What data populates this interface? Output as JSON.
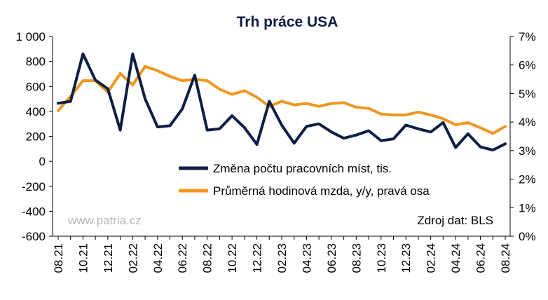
{
  "chart_data": {
    "type": "line",
    "title": "Trh práce USA",
    "x": [
      "08.21",
      "09.21",
      "10.21",
      "11.21",
      "12.21",
      "01.22",
      "02.22",
      "03.22",
      "04.22",
      "05.22",
      "06.22",
      "07.22",
      "08.22",
      "09.22",
      "10.22",
      "11.22",
      "12.22",
      "01.23",
      "02.23",
      "03.23",
      "04.23",
      "05.23",
      "06.23",
      "07.23",
      "08.23",
      "09.23",
      "10.23",
      "11.23",
      "12.23",
      "01.24",
      "02.24",
      "03.24",
      "04.24",
      "05.24",
      "06.24",
      "07.24",
      "08.24"
    ],
    "x_tick_labels": [
      "08.21",
      "10.21",
      "12.21",
      "02.22",
      "04.22",
      "06.22",
      "08.22",
      "10.22",
      "12.22",
      "02.23",
      "04.23",
      "06.23",
      "08.23",
      "10.23",
      "12.23",
      "02.24",
      "04.24",
      "06.24",
      "08.24"
    ],
    "y_left": {
      "ylim": [
        -600,
        1000
      ],
      "ticks": [
        "1 000",
        "800",
        "600",
        "400",
        "200",
        "0",
        "-200",
        "-400",
        "-600"
      ],
      "tick_values": [
        1000,
        800,
        600,
        400,
        200,
        0,
        -200,
        -400,
        -600
      ]
    },
    "y_right": {
      "ylim": [
        0,
        7
      ],
      "ticks": [
        "7%",
        "6%",
        "5%",
        "4%",
        "3%",
        "2%",
        "1%",
        "0%"
      ],
      "tick_values": [
        7,
        6,
        5,
        4,
        3,
        2,
        1,
        0
      ]
    },
    "series": [
      {
        "name": "Změna počtu pracovních míst, tis.",
        "axis": "left",
        "color": "#0d1f45",
        "values": [
          465,
          480,
          860,
          650,
          580,
          250,
          860,
          500,
          275,
          285,
          420,
          690,
          250,
          260,
          365,
          270,
          135,
          480,
          290,
          145,
          280,
          300,
          235,
          185,
          210,
          245,
          165,
          180,
          290,
          260,
          235,
          310,
          110,
          220,
          115,
          90,
          140
        ]
      },
      {
        "name": "Průměrná hodinová mzda, y/y, pravá osa",
        "axis": "right",
        "color": "#f0961e",
        "values": [
          4.4,
          4.9,
          5.45,
          5.45,
          5.05,
          5.7,
          5.3,
          5.95,
          5.8,
          5.6,
          5.45,
          5.5,
          5.45,
          5.15,
          4.97,
          5.1,
          4.87,
          4.55,
          4.73,
          4.6,
          4.65,
          4.55,
          4.65,
          4.68,
          4.52,
          4.48,
          4.28,
          4.25,
          4.25,
          4.35,
          4.25,
          4.12,
          3.9,
          3.98,
          3.8,
          3.6,
          3.85
        ]
      }
    ],
    "legend_position": "right",
    "watermark": "www.patria.cz",
    "source": "Zdroj dat: BLS",
    "grid": false
  }
}
